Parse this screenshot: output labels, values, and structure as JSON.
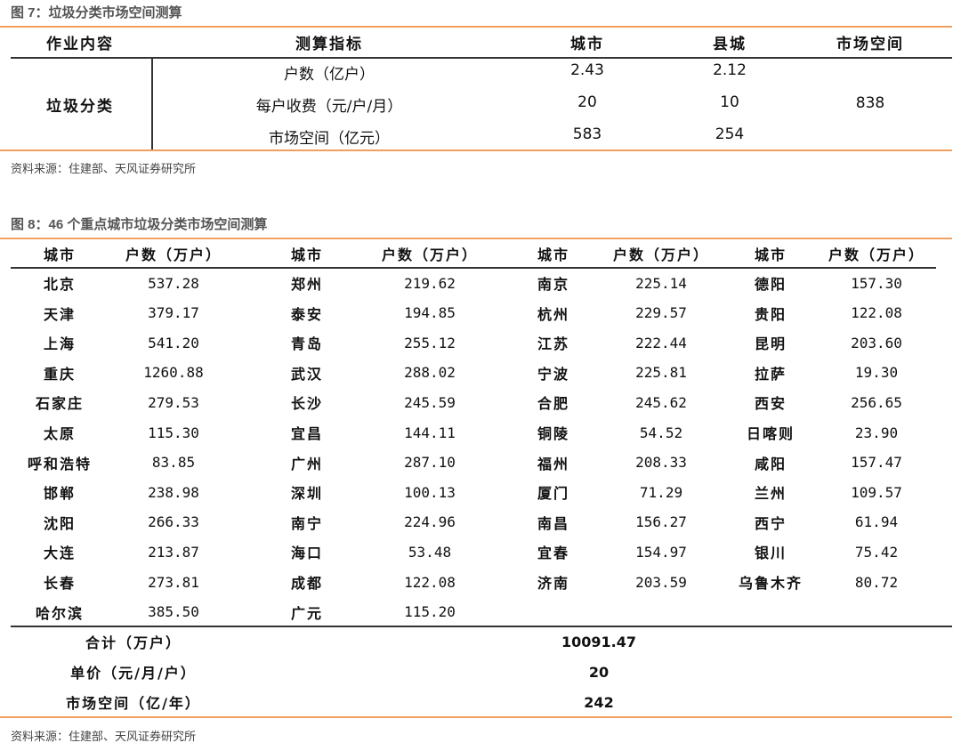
{
  "fig7": {
    "title": "图 7：垃圾分类市场空间测算",
    "headers": [
      "作业内容",
      "测算指标",
      "城市",
      "县城",
      "市场空间"
    ],
    "category": "垃圾分类",
    "market_total": "838",
    "rows": [
      {
        "metric": "户数（亿户）",
        "city": "2.43",
        "county": "2.12"
      },
      {
        "metric": "每户收费（元/户/月）",
        "city": "20",
        "county": "10"
      },
      {
        "metric": "市场空间（亿元）",
        "city": "583",
        "county": "254"
      }
    ],
    "source": "资料来源：住建部、天风证券研究所"
  },
  "fig8": {
    "title": "图 8：46 个重点城市垃圾分类市场空间测算",
    "headers": [
      "城市",
      "户数（万户）",
      "城市",
      "户数（万户）",
      "城市",
      "户数（万户）",
      "城市",
      "户数（万户）"
    ],
    "rows": [
      [
        "北京",
        "537.28",
        "郑州",
        "219.62",
        "南京",
        "225.14",
        "德阳",
        "157.30"
      ],
      [
        "天津",
        "379.17",
        "泰安",
        "194.85",
        "杭州",
        "229.57",
        "贵阳",
        "122.08"
      ],
      [
        "上海",
        "541.20",
        "青岛",
        "255.12",
        "江苏",
        "222.44",
        "昆明",
        "203.60"
      ],
      [
        "重庆",
        "1260.88",
        "武汉",
        "288.02",
        "宁波",
        "225.81",
        "拉萨",
        "19.30"
      ],
      [
        "石家庄",
        "279.53",
        "长沙",
        "245.59",
        "合肥",
        "245.62",
        "西安",
        "256.65"
      ],
      [
        "太原",
        "115.30",
        "宜昌",
        "144.11",
        "铜陵",
        "54.52",
        "日喀则",
        "23.90"
      ],
      [
        "呼和浩特",
        "83.85",
        "广州",
        "287.10",
        "福州",
        "208.33",
        "咸阳",
        "157.47"
      ],
      [
        "邯郸",
        "238.98",
        "深圳",
        "100.13",
        "厦门",
        "71.29",
        "兰州",
        "109.57"
      ],
      [
        "沈阳",
        "266.33",
        "南宁",
        "224.96",
        "南昌",
        "156.27",
        "西宁",
        "61.94"
      ],
      [
        "大连",
        "213.87",
        "海口",
        "53.48",
        "宜春",
        "154.97",
        "银川",
        "75.42"
      ],
      [
        "长春",
        "273.81",
        "成都",
        "122.08",
        "济南",
        "203.59",
        "乌鲁木齐",
        "80.72"
      ],
      [
        "哈尔滨",
        "385.50",
        "广元",
        "115.20",
        "",
        "",
        "",
        ""
      ]
    ],
    "summary": [
      {
        "label": "合计（万户）",
        "value": "10091.47"
      },
      {
        "label": "单价（元/月/户）",
        "value": "20"
      },
      {
        "label": "市场空间（亿/年）",
        "value": "242"
      }
    ],
    "source": "资料来源：住建部、天风证券研究所"
  },
  "colors": {
    "accent_line": "#f0a060",
    "rule": "#333333",
    "title": "#555555"
  }
}
